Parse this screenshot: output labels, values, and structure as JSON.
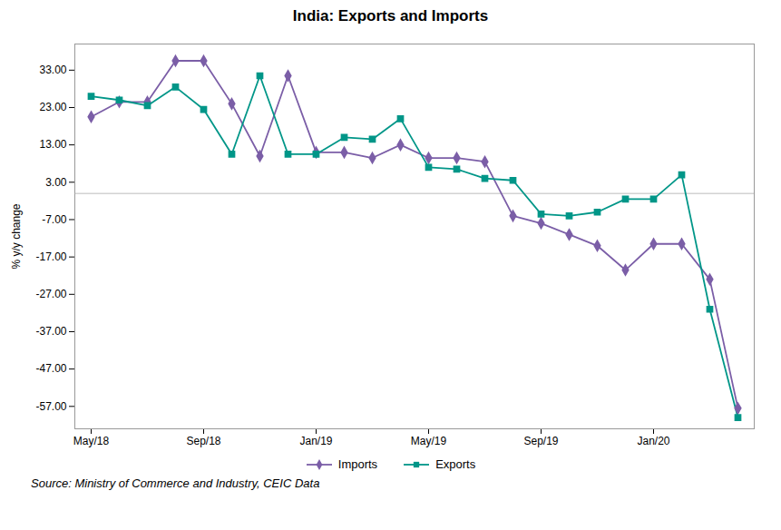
{
  "chart_data": {
    "type": "line",
    "title": "India: Exports and Imports",
    "y_label": "% y/y change",
    "caption": "Source: Ministry of Commerce and Industry, CEIC Data",
    "categories": [
      "May/18",
      null,
      null,
      null,
      "Sep/18",
      null,
      null,
      null,
      "Jan/19",
      null,
      null,
      null,
      "May/19",
      null,
      null,
      null,
      "Sep/19",
      null,
      null,
      null,
      "Jan/20",
      null,
      null,
      null
    ],
    "series": [
      {
        "name": "Imports",
        "color": "#7B5EA7",
        "marker": "diamond",
        "values": [
          20.5,
          24.5,
          24.5,
          35.5,
          35.5,
          24.0,
          10.0,
          31.5,
          11.0,
          11.0,
          9.5,
          13.0,
          9.5,
          9.5,
          8.5,
          -6.0,
          -8.0,
          -11.0,
          -14.0,
          -20.5,
          -13.5,
          -13.5,
          -23.0,
          -57.5
        ]
      },
      {
        "name": "Exports",
        "color": "#009688",
        "marker": "square",
        "values": [
          26.0,
          25.0,
          23.5,
          28.5,
          22.5,
          10.5,
          31.5,
          10.5,
          10.5,
          15.0,
          14.5,
          20.0,
          7.0,
          6.5,
          4.0,
          3.5,
          -5.5,
          -6.0,
          -5.0,
          -1.5,
          -1.5,
          5.0,
          -31.0,
          -60.0
        ]
      }
    ],
    "ylim": [
      -63,
      40
    ],
    "yticks": [
      {
        "value": -57,
        "label": "-57.00"
      },
      {
        "value": -47,
        "label": "-47.00"
      },
      {
        "value": -37,
        "label": "-37.00"
      },
      {
        "value": -27,
        "label": "-27.00"
      },
      {
        "value": -17,
        "label": "-17.00"
      },
      {
        "value": -7,
        "label": "-7.00"
      },
      {
        "value": 3,
        "label": "3.00"
      },
      {
        "value": 13,
        "label": "13.00"
      },
      {
        "value": 23,
        "label": "23.00"
      },
      {
        "value": 33,
        "label": "33.00"
      }
    ],
    "grid": false,
    "legend": "bottom"
  }
}
